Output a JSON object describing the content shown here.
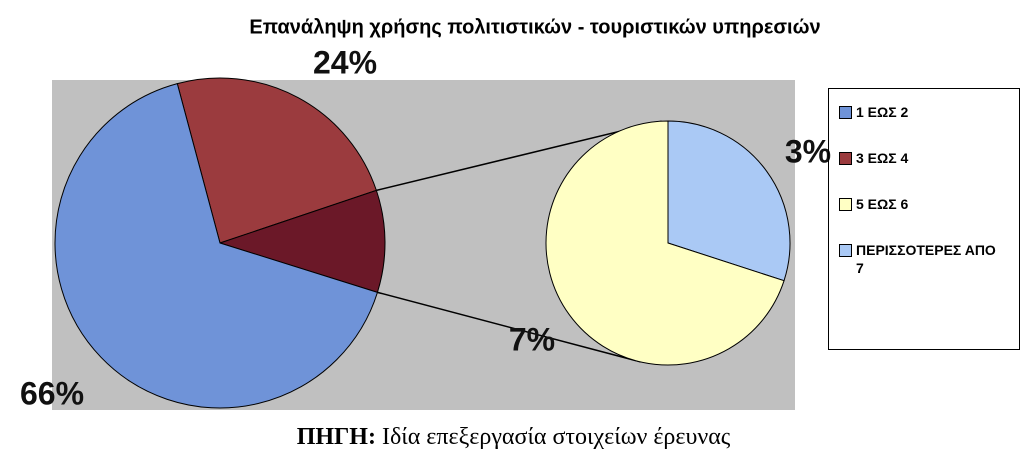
{
  "chart_data": {
    "type": "pie",
    "title": "Επανάληψη χρήσης πολιτιστικών - τουριστικών υπηρεσιών",
    "categories": [
      "1 ΕΩΣ 2",
      "3 ΕΩΣ 4",
      "5 ΕΩΣ 6",
      "ΠΕΡΙΣΣΟΤΕΡΕΣ ΑΠΟ 7"
    ],
    "values": [
      66,
      24,
      7,
      3
    ],
    "value_labels": [
      "66%",
      "24%",
      "7%",
      "3%"
    ],
    "colors": [
      "#6f93d8",
      "#9b3b3e",
      "#ffffc4",
      "#aac9f5"
    ],
    "legend": "right"
  },
  "source": {
    "label": "ΠΗΓΗ:",
    "text": "Ιδία επεξεργασία στοιχείων έρευνας"
  }
}
